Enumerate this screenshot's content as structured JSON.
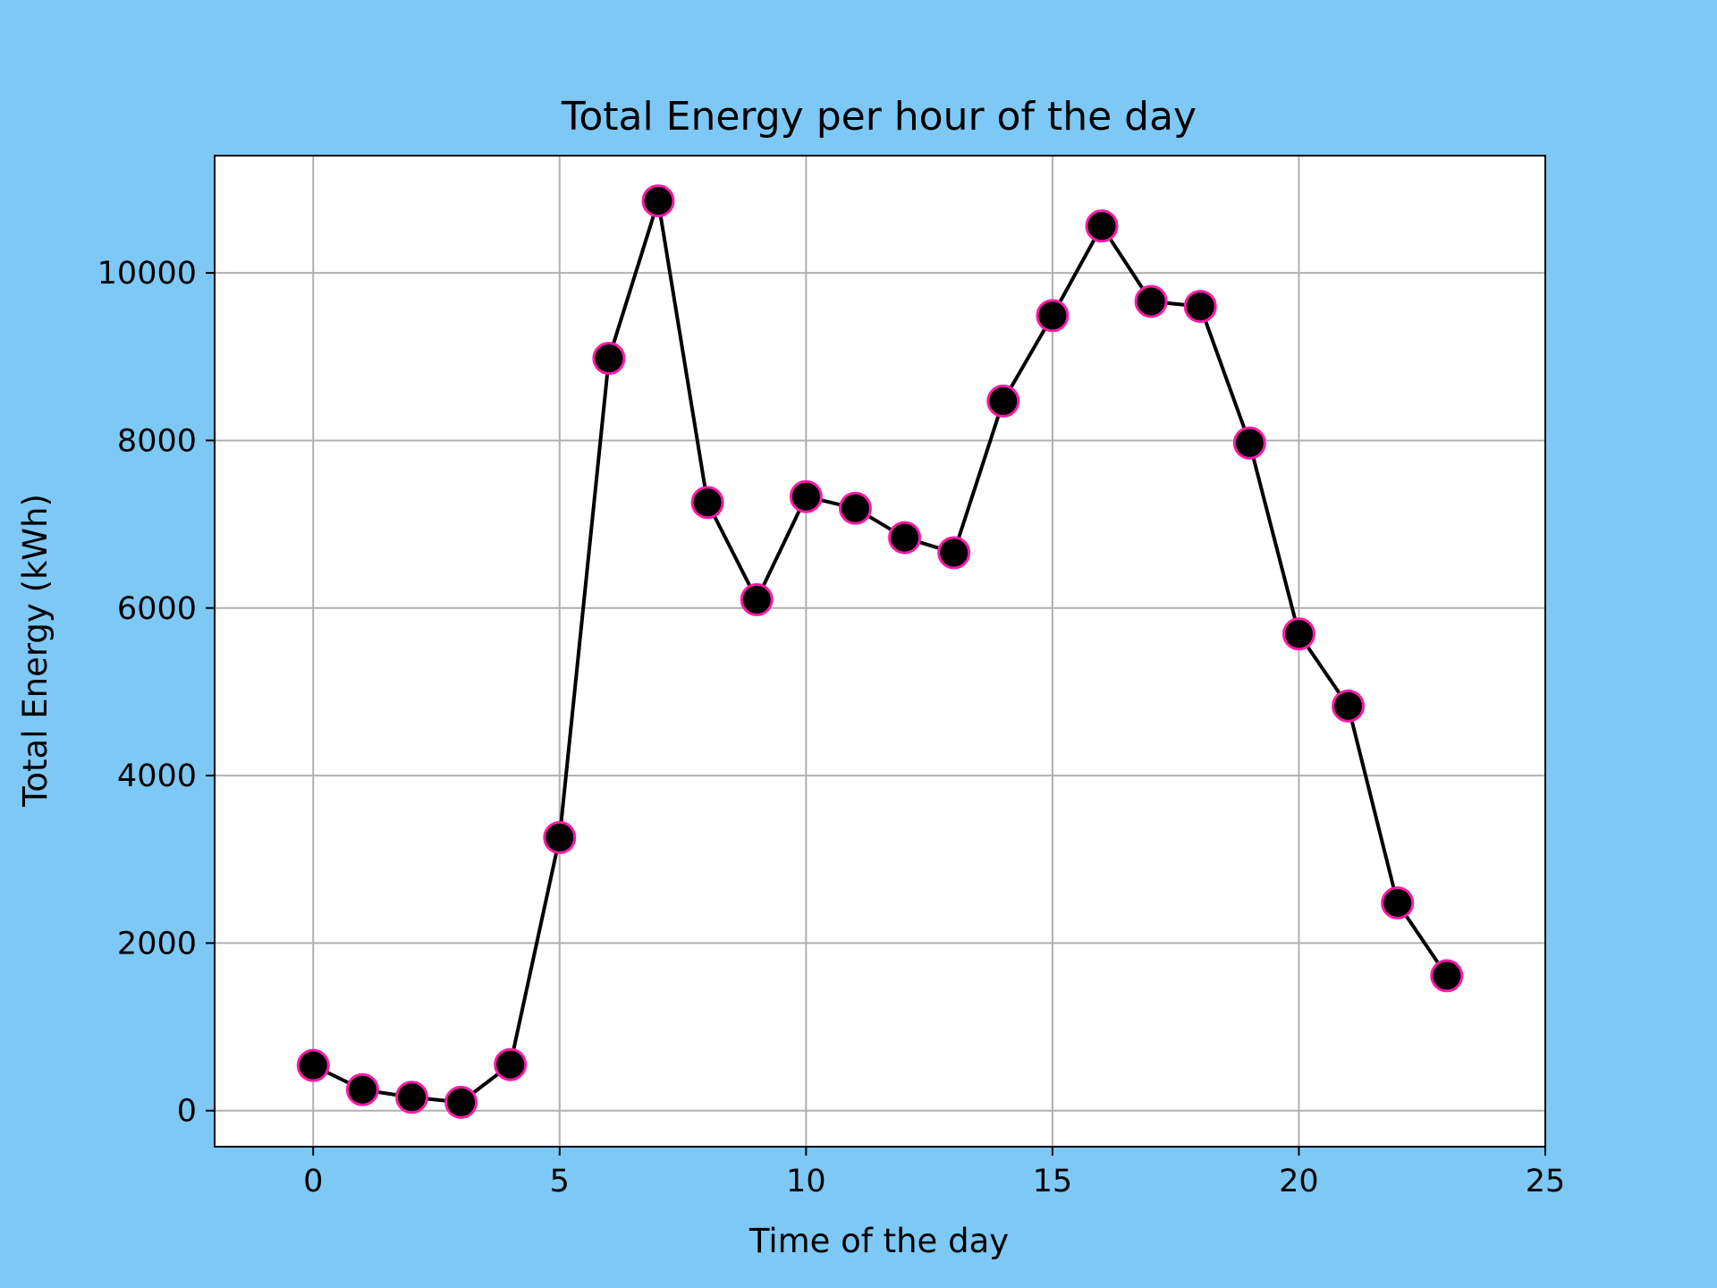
{
  "chart_data": {
    "type": "line",
    "title": "Total Energy per hour of the day",
    "xlabel": "Time of the day",
    "ylabel": "Total Energy (kWh)",
    "xlim": [
      -2,
      25
    ],
    "ylim": [
      -430,
      11400
    ],
    "xticks": [
      0,
      5,
      10,
      15,
      20,
      25
    ],
    "yticks": [
      0,
      2000,
      4000,
      6000,
      8000,
      10000
    ],
    "grid": true,
    "x": [
      0,
      1,
      2,
      3,
      4,
      5,
      6,
      7,
      8,
      9,
      10,
      11,
      12,
      13,
      14,
      15,
      16,
      17,
      18,
      19,
      20,
      21,
      22,
      23
    ],
    "series": [
      {
        "values": [
          540,
          250,
          160,
          100,
          550,
          3260,
          8980,
          10860,
          7260,
          6100,
          7330,
          7190,
          6840,
          6660,
          8470,
          9490,
          10560,
          9660,
          9600,
          7970,
          5690,
          4830,
          2480,
          1610
        ],
        "line_color": "#000000",
        "marker_fill": "#000000",
        "marker_edge": "#ff1aa8"
      }
    ],
    "colors": {
      "background": "#7ec8f5",
      "plot_background": "#ffffff",
      "grid": "#b0b0b0"
    }
  }
}
